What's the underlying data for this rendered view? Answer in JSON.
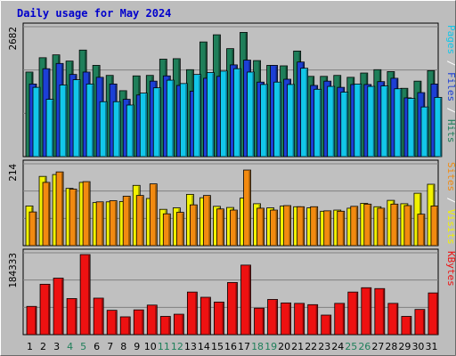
{
  "chart_data": {
    "type": "bar",
    "title": "Daily usage for May 2024",
    "categories": [
      "1",
      "2",
      "3",
      "4",
      "5",
      "6",
      "7",
      "8",
      "9",
      "10",
      "11",
      "12",
      "13",
      "14",
      "15",
      "16",
      "17",
      "18",
      "19",
      "20",
      "21",
      "22",
      "23",
      "24",
      "25",
      "26",
      "27",
      "28",
      "29",
      "30",
      "31"
    ],
    "weekend_days": [
      "4",
      "5",
      "11",
      "12",
      "18",
      "19",
      "25",
      "26"
    ],
    "panels": [
      {
        "id": "hits",
        "ymax_label": "2682",
        "ylim": [
          0,
          2682
        ],
        "series": [
          {
            "name": "Hits",
            "color": "#1f7f5a",
            "values": [
              1770,
              2070,
              2130,
              2000,
              2230,
              1910,
              1700,
              1380,
              1690,
              1700,
              2040,
              2050,
              1820,
              2400,
              2550,
              2260,
              2600,
              2010,
              1910,
              1900,
              2210,
              1680,
              1680,
              1700,
              1660,
              1750,
              1820,
              1780,
              1430,
              1580,
              1800
            ]
          },
          {
            "name": "Files",
            "color": "#1c3fd6",
            "values": [
              1520,
              1840,
              1950,
              1720,
              1770,
              1660,
              1520,
              1200,
              1290,
              1580,
              1690,
              1490,
              1370,
              1640,
              1680,
              1920,
              2020,
              1560,
              1910,
              1620,
              1980,
              1490,
              1580,
              1450,
              1510,
              1510,
              1570,
              1640,
              1230,
              1340,
              1520
            ]
          },
          {
            "name": "Pages",
            "color": "#12c7ea",
            "values": [
              1450,
              1200,
              1500,
              1610,
              1520,
              1150,
              1150,
              1080,
              1330,
              1440,
              1600,
              1530,
              1720,
              1760,
              1790,
              1840,
              1770,
              1510,
              1560,
              1510,
              1850,
              1410,
              1470,
              1350,
              1520,
              1470,
              1480,
              1420,
              1220,
              1040,
              1240
            ]
          }
        ]
      },
      {
        "id": "visits",
        "ymax_label": "214",
        "ylim": [
          0,
          214
        ],
        "series": [
          {
            "name": "Visits",
            "color": "#f2f200",
            "values": [
              106,
              185,
              190,
              153,
              169,
              115,
              117,
              118,
              161,
              126,
              97,
              101,
              137,
              128,
              105,
              102,
              127,
              112,
              101,
              106,
              104,
              101,
              92,
              95,
              100,
              113,
              104,
              121,
              112,
              140,
              164
            ]
          },
          {
            "name": "Sites",
            "color": "#f28a10",
            "values": [
              90,
              169,
              197,
              151,
              171,
              117,
              120,
              132,
              134,
              165,
              85,
              89,
              109,
              134,
              98,
              95,
              202,
              100,
              95,
              107,
              104,
              104,
              93,
              92,
              105,
              111,
              100,
              111,
              107,
              84,
              106
            ]
          }
        ]
      },
      {
        "id": "kbytes",
        "ymax_label": "184333",
        "ylim": [
          0,
          184333
        ],
        "series": [
          {
            "name": "KBytes",
            "color": "#ee1111",
            "values": [
              65000,
              116000,
              130000,
              83000,
              184333,
              84000,
              56000,
              41000,
              57000,
              68000,
              42000,
              47000,
              98000,
              86000,
              75000,
              120000,
              160000,
              61000,
              81000,
              73000,
              72000,
              69000,
              45000,
              72000,
              98000,
              108000,
              106000,
              72000,
              42000,
              58000,
              96000
            ]
          }
        ]
      }
    ],
    "side_labels": [
      {
        "panel": "hits",
        "parts": [
          {
            "text": "Pages",
            "color": "#12c7ea"
          },
          {
            "text": " / ",
            "color": "#ffffff"
          },
          {
            "text": "Files",
            "color": "#1c3fd6"
          },
          {
            "text": " / ",
            "color": "#ffffff"
          },
          {
            "text": "Hits",
            "color": "#1f7f5a"
          }
        ]
      },
      {
        "panel": "visits",
        "parts": [
          {
            "text": "Sites",
            "color": "#f28a10"
          },
          {
            "text": " / ",
            "color": "#ffffff"
          },
          {
            "text": "Visits",
            "color": "#f2f200"
          }
        ]
      },
      {
        "panel": "kbytes",
        "parts": [
          {
            "text": "KBytes",
            "color": "#ee1111"
          }
        ]
      }
    ],
    "grid": true,
    "colors": {
      "background": "#bdbdbd",
      "plot_bg": "#c0c0c0",
      "title": "#0000cc",
      "weekday_label": "#000000",
      "weekend_label": "#1f7f5a",
      "gridline": "#808080"
    }
  }
}
